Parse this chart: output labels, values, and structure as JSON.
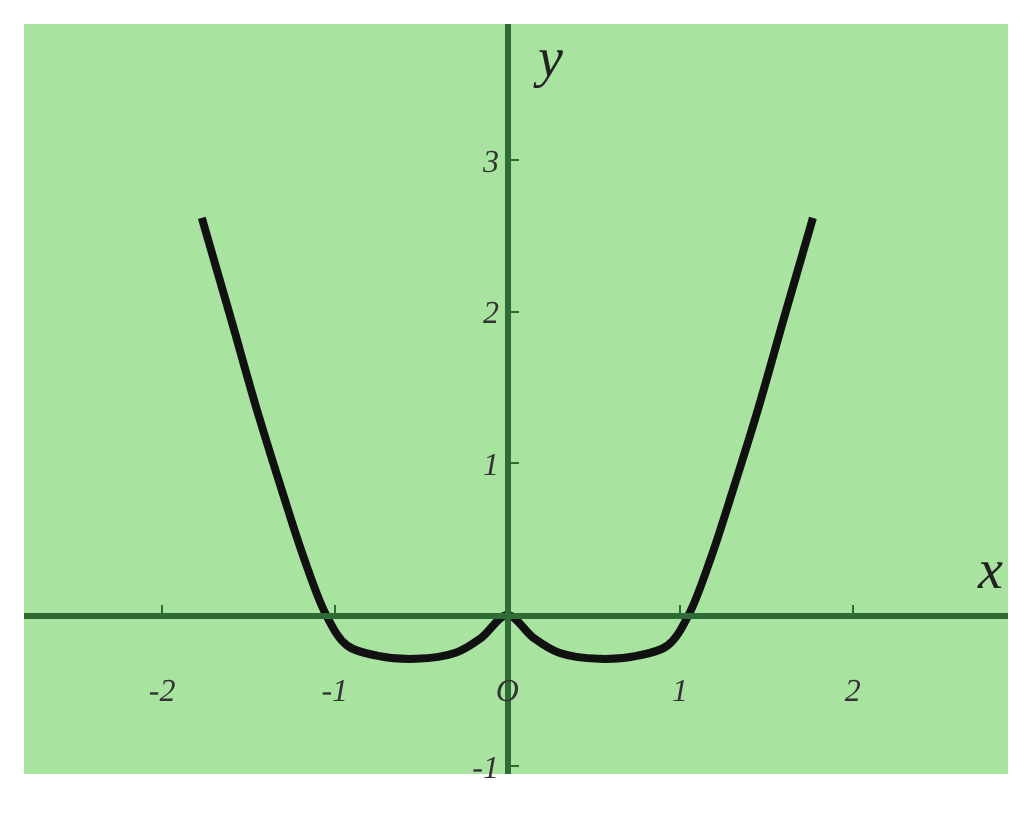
{
  "chart_data": {
    "type": "line",
    "xlabel": "x",
    "ylabel": "y",
    "x": [
      -1.77,
      -1.6,
      -1.45,
      -1.3,
      -1.18,
      -1.05,
      -0.93,
      -0.75,
      -0.53,
      -0.3,
      -0.15,
      0,
      0.15,
      0.3,
      0.53,
      0.75,
      0.93,
      1.05,
      1.18,
      1.3,
      1.45,
      1.6,
      1.77
    ],
    "series": [
      {
        "color": "#111111",
        "values": [
          2.62,
          1.95,
          1.35,
          0.8,
          0.38,
          0,
          -0.2,
          -0.27,
          -0.29,
          -0.25,
          -0.15,
          0,
          -0.15,
          -0.25,
          -0.29,
          -0.27,
          -0.2,
          0,
          0.38,
          0.8,
          1.35,
          1.95,
          2.62
        ]
      }
    ],
    "xlim": [
      -2.8,
      2.9
    ],
    "ylim": [
      -1.05,
      3.9
    ],
    "xticks": [
      -2,
      -1,
      {
        "value": 0,
        "label": "O"
      },
      1,
      2
    ],
    "yticks": [
      -1,
      1,
      2,
      3
    ],
    "grid": false,
    "marker": "none",
    "line_style": "solid"
  }
}
